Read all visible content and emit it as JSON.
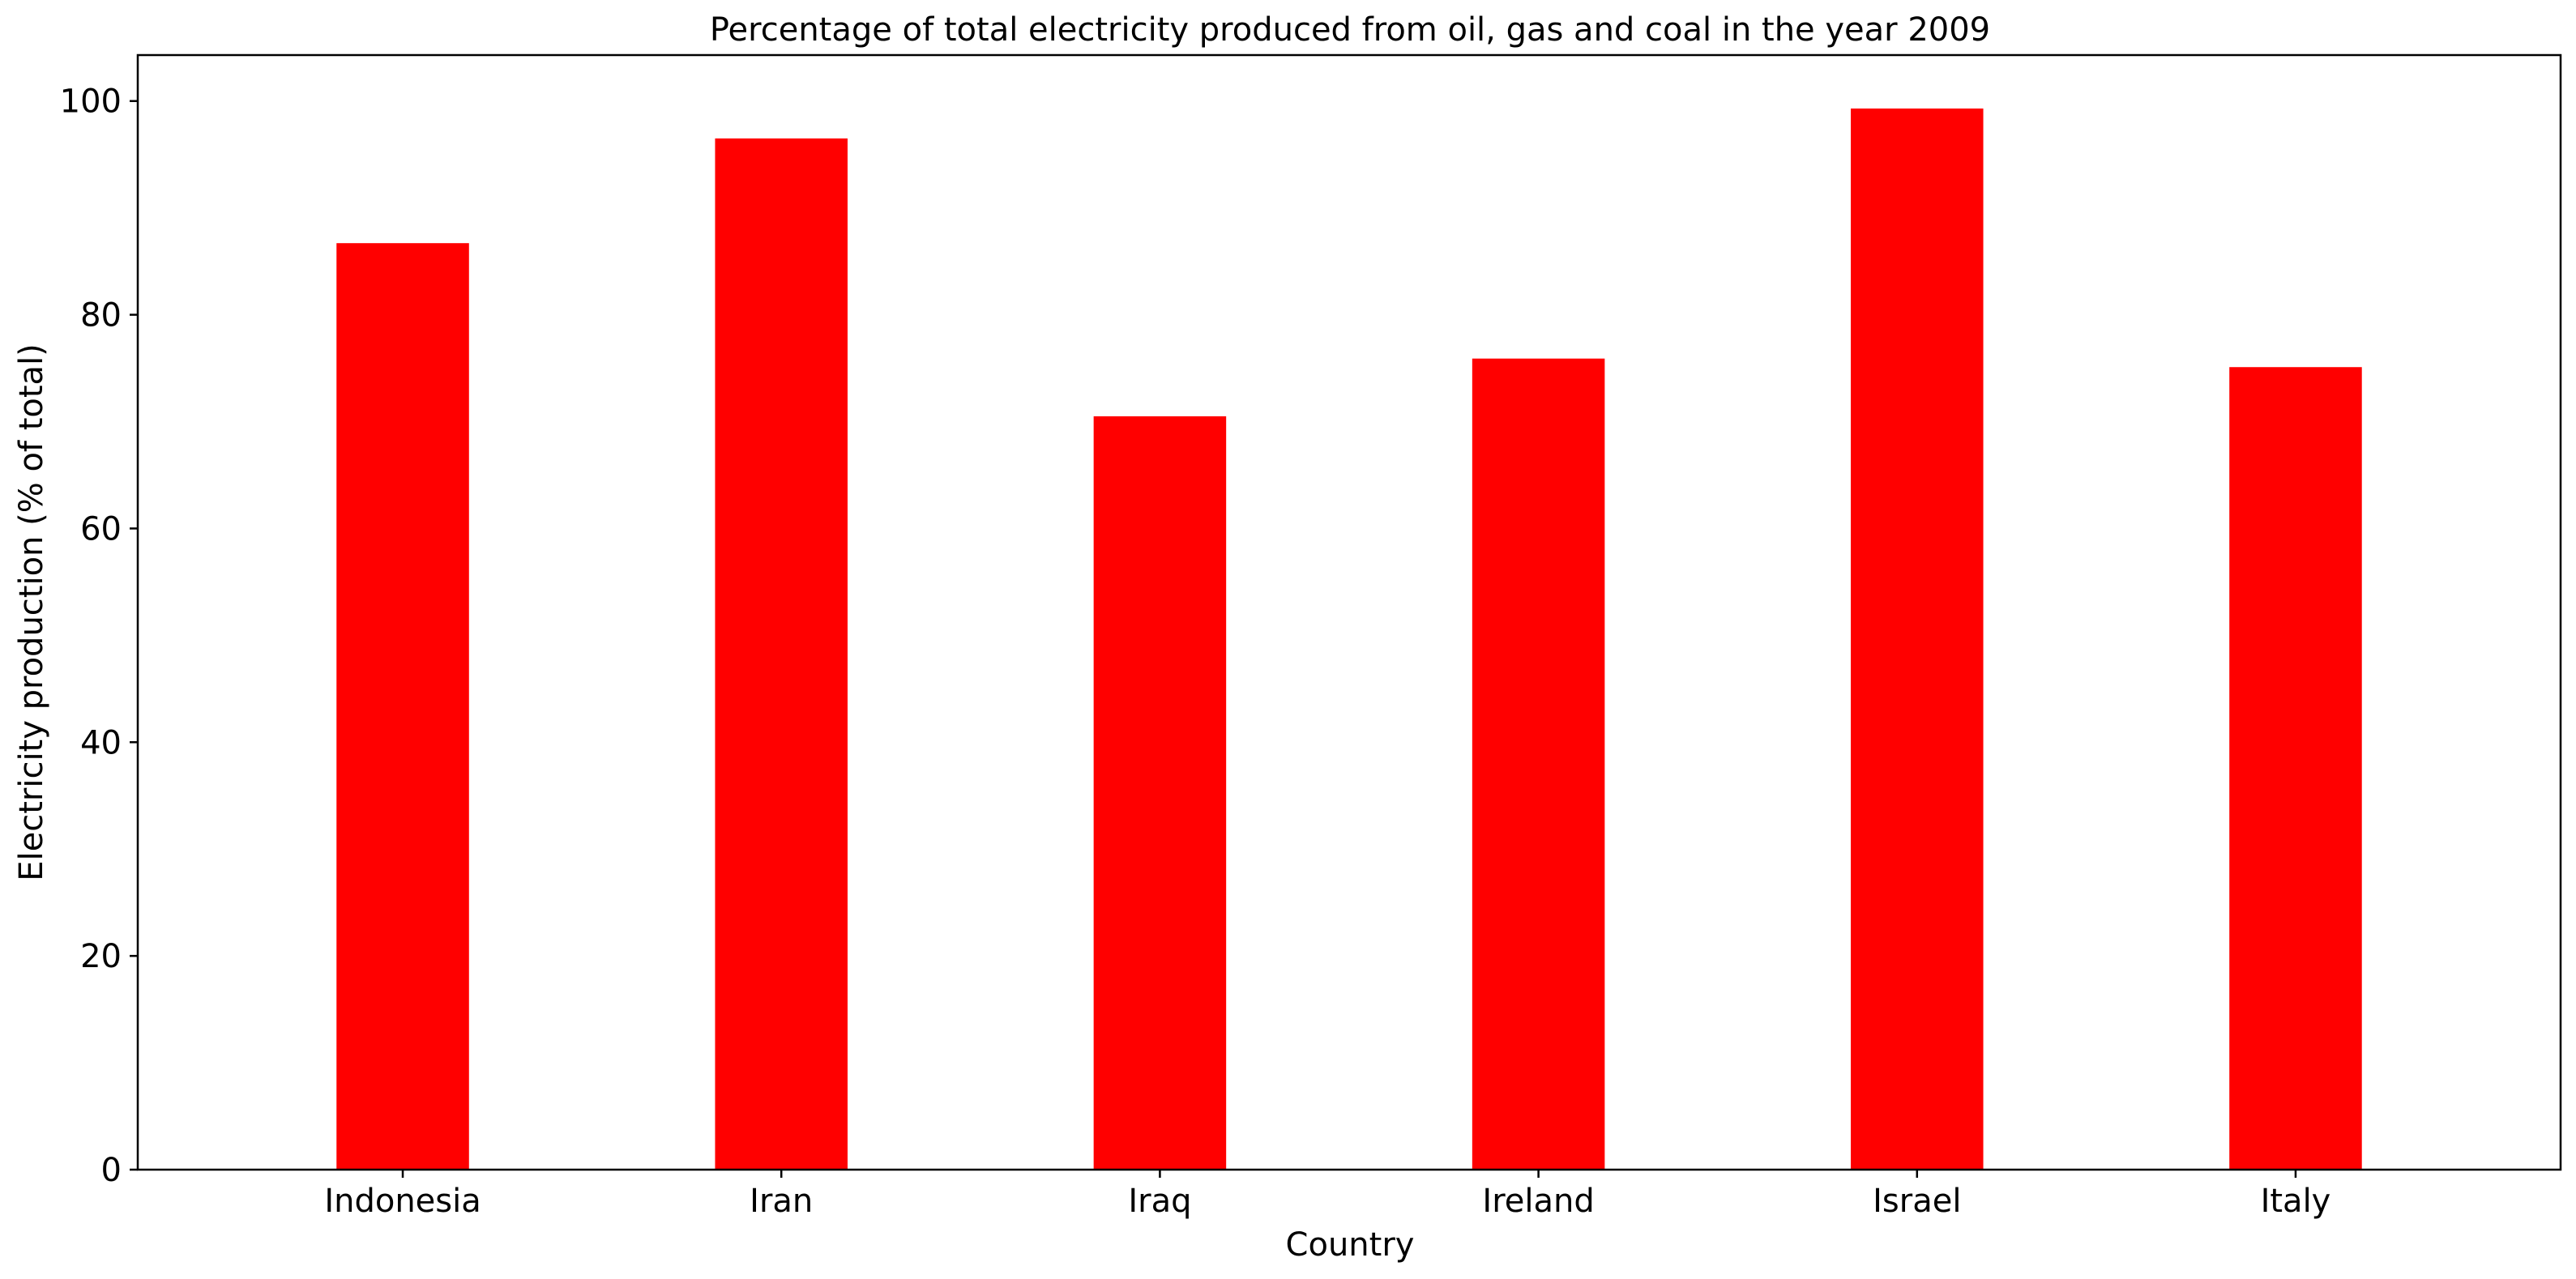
{
  "chart_data": {
    "type": "bar",
    "title": "Percentage of total electricity produced from oil, gas and coal in the year 2009",
    "xlabel": "Country",
    "ylabel": "Electricity production (% of total)",
    "categories": [
      "Indonesia",
      "Iran",
      "Iraq",
      "Ireland",
      "Israel",
      "Italy"
    ],
    "values": [
      86.7,
      96.5,
      70.5,
      75.9,
      99.3,
      75.1
    ],
    "ylim": [
      0,
      104.3
    ],
    "yticks": [
      0,
      20,
      40,
      60,
      80,
      100
    ],
    "grid": false,
    "bar_color": "#ff0000"
  }
}
